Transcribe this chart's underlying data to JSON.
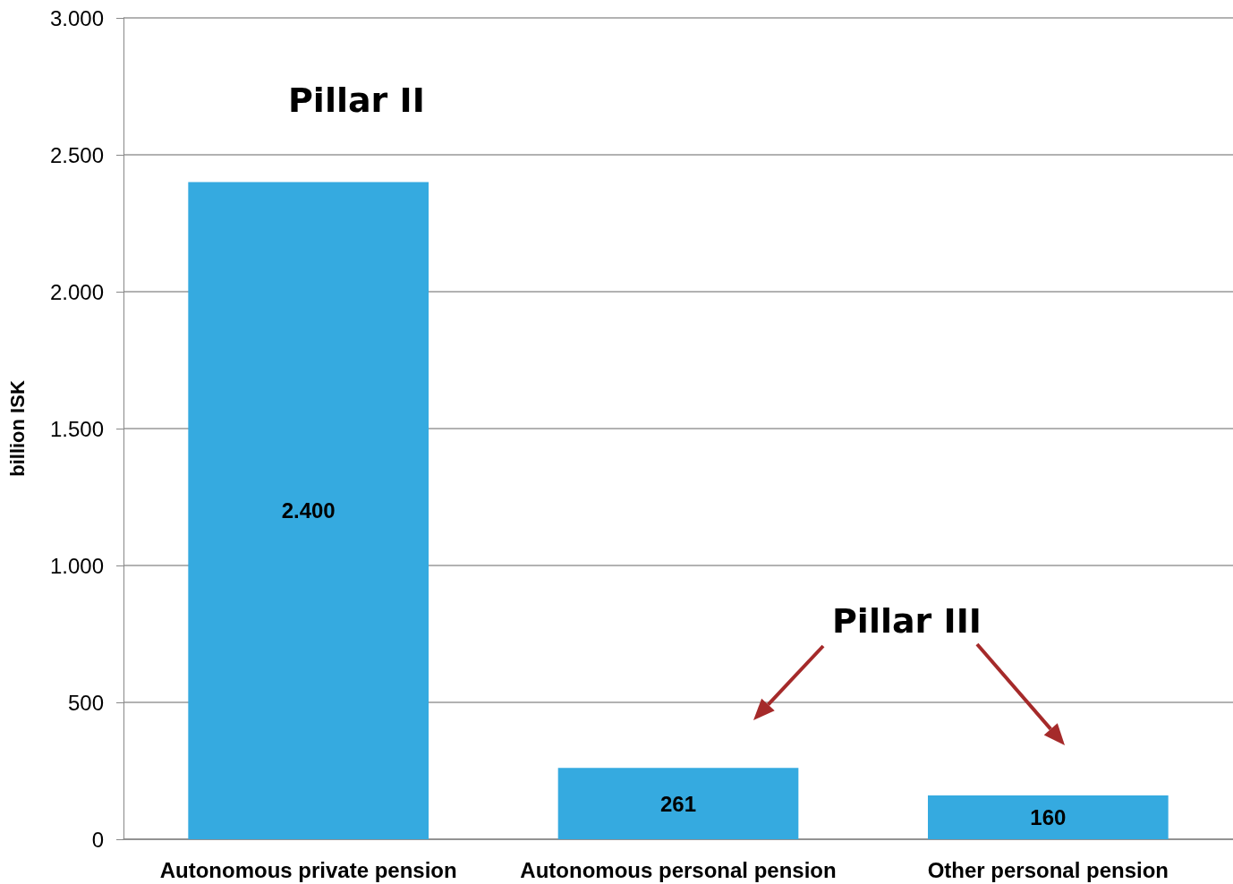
{
  "chart_data": {
    "type": "bar",
    "ylabel": "billion ISK",
    "categories": [
      "Autonomous private pension",
      "Autonomous personal pension",
      "Other personal pension"
    ],
    "values": [
      2400,
      261,
      160
    ],
    "value_labels": [
      "2.400",
      "261",
      "160"
    ],
    "color": "#35aae0",
    "ylim": [
      0,
      3000
    ],
    "yticks": [
      {
        "value": 0,
        "label": "0"
      },
      {
        "value": 500,
        "label": "500"
      },
      {
        "value": 1000,
        "label": "1.000"
      },
      {
        "value": 1500,
        "label": "1.500"
      },
      {
        "value": 2000,
        "label": "2.000"
      },
      {
        "value": 2500,
        "label": "2.500"
      },
      {
        "value": 3000,
        "label": "3.000"
      }
    ],
    "grid": "y",
    "annotations": [
      "Pillar II",
      "Pillar III"
    ]
  }
}
